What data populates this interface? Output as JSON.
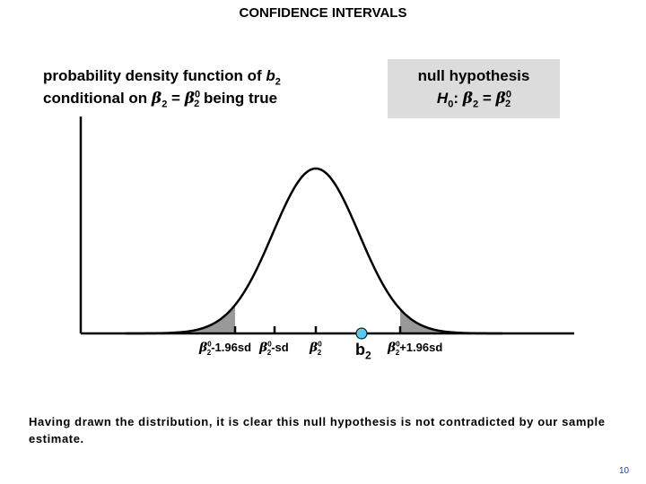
{
  "title": "CONFIDENCE INTERVALS",
  "pdf_label": {
    "line1_text": "probability density function of ",
    "line1_var": "b",
    "line1_sub": "2",
    "line2_text": "conditional on ",
    "beta": "β",
    "sub2": "2",
    "equals": " = ",
    "sup0": "0",
    "line2_end": " being true"
  },
  "null_hypothesis": {
    "line1": "null hypothesis",
    "h": "H",
    "h_sub": "0",
    "colon": ": ",
    "beta": "β",
    "sub2": "2",
    "equals": " = ",
    "sup0": "0"
  },
  "axis_labels": {
    "beta": "β",
    "sub2": "2",
    "sup0": "0",
    "minus_196sd": "-1.96sd",
    "minus_sd": "-sd",
    "plus_196sd": "+1.96sd",
    "b": "b",
    "b_sub": "2"
  },
  "caption": "Having drawn the distribution, it is clear this null hypothesis is not contradicted by our sample estimate.",
  "page_number": "10",
  "colors": {
    "tail_shade": "#999999",
    "estimate_marker": "#55ccee",
    "hypothesis_box": "#dcdcdc",
    "page_number": "#1f3fbf"
  }
}
